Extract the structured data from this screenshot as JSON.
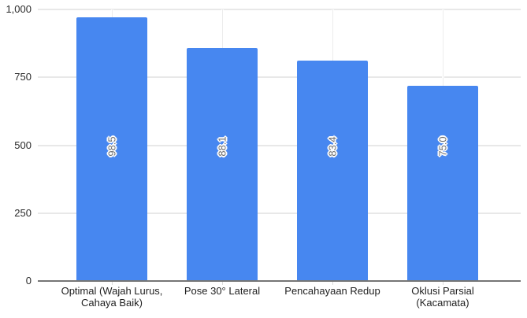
{
  "chart_data": {
    "type": "bar",
    "title": "",
    "xlabel": "",
    "ylabel": "",
    "categories": [
      "Optimal (Wajah Lurus, Cahaya Baik)",
      "Pose 30° Lateral",
      "Pencahayaan Redup",
      "Oklusi Parsial (Kacamata)"
    ],
    "values": [
      972,
      857,
      811,
      718
    ],
    "bar_labels": [
      "98.5",
      "88.1",
      "83.4",
      "75.0"
    ],
    "y_ticks": [
      {
        "value": 0,
        "label": "0"
      },
      {
        "value": 250,
        "label": "250"
      },
      {
        "value": 500,
        "label": "500"
      },
      {
        "value": 750,
        "label": "750"
      },
      {
        "value": 1000,
        "label": "1,000"
      }
    ],
    "ylim": [
      0,
      1000
    ],
    "grid": "horizontal-major",
    "legend": "none",
    "colors": {
      "background": "#ffffff",
      "bar": "#4787f0",
      "gridline": "#e8e8e8",
      "vline": "#ececec",
      "axis_line": "#757575",
      "tick_label": "#2a2a2a",
      "category_label": "#1f1f1f",
      "bar_label_fill": "#6f6f6f",
      "bar_label_outline": "#ffffff",
      "x_tick": "#dcdcdc"
    }
  }
}
